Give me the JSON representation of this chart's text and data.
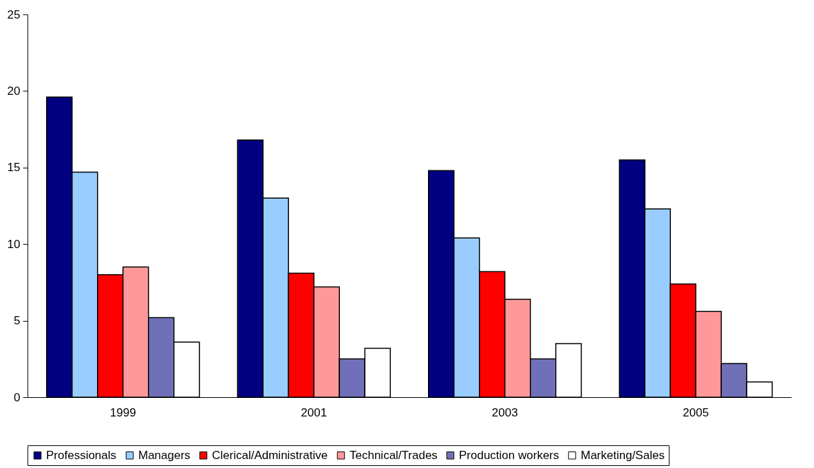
{
  "chart_data": {
    "type": "bar",
    "categories": [
      "1999",
      "2001",
      "2003",
      "2005"
    ],
    "series": [
      {
        "name": "Professionals",
        "color": "#000080",
        "values": [
          19.6,
          16.8,
          14.8,
          15.5
        ]
      },
      {
        "name": "Managers",
        "color": "#99ccff",
        "values": [
          14.7,
          13.0,
          10.4,
          12.3
        ]
      },
      {
        "name": "Clerical/Administrative",
        "color": "#ff0000",
        "values": [
          8.0,
          8.1,
          8.2,
          7.4
        ]
      },
      {
        "name": "Technical/Trades",
        "color": "#ff9999",
        "values": [
          8.5,
          7.2,
          6.4,
          5.6
        ]
      },
      {
        "name": "Production workers",
        "color": "#7070b8",
        "values": [
          5.2,
          2.5,
          2.5,
          2.2
        ]
      },
      {
        "name": "Marketing/Sales",
        "color": "#ffffff",
        "values": [
          3.6,
          3.2,
          3.5,
          1.0
        ]
      }
    ],
    "ylim": [
      0,
      25
    ],
    "yticks": [
      0,
      5,
      10,
      15,
      20,
      25
    ],
    "grid": false,
    "legend": "bottom"
  }
}
